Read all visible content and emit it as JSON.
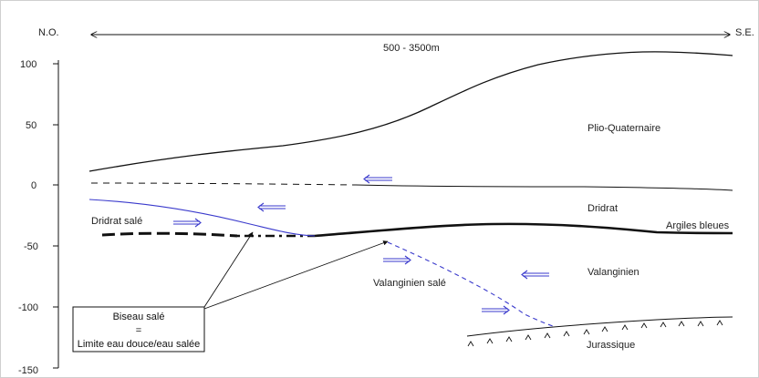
{
  "orientation": {
    "left": "N.O.",
    "right": "S.E."
  },
  "distance_label": "500 - 3500m",
  "y_axis": {
    "ticks": [
      "100",
      "50",
      "0",
      "-50",
      "-100",
      "-150"
    ]
  },
  "layers": {
    "plio_quaternaire": "Plio-Quaternaire",
    "dridrat": "Dridrat",
    "dridrat_sale": "Dridrat salé",
    "argiles_bleues": "Argiles bleues",
    "valanginien": "Valanginien",
    "valanginien_sale": "Valanginien salé",
    "jurassique": "Jurassique"
  },
  "legend_box": {
    "line1": "Biseau salé",
    "line2": "=",
    "line3": "Limite eau douce/eau salée"
  },
  "colors": {
    "arrow": "#3a3acc",
    "saline_boundary": "#3a3acc",
    "line": "#111111"
  }
}
